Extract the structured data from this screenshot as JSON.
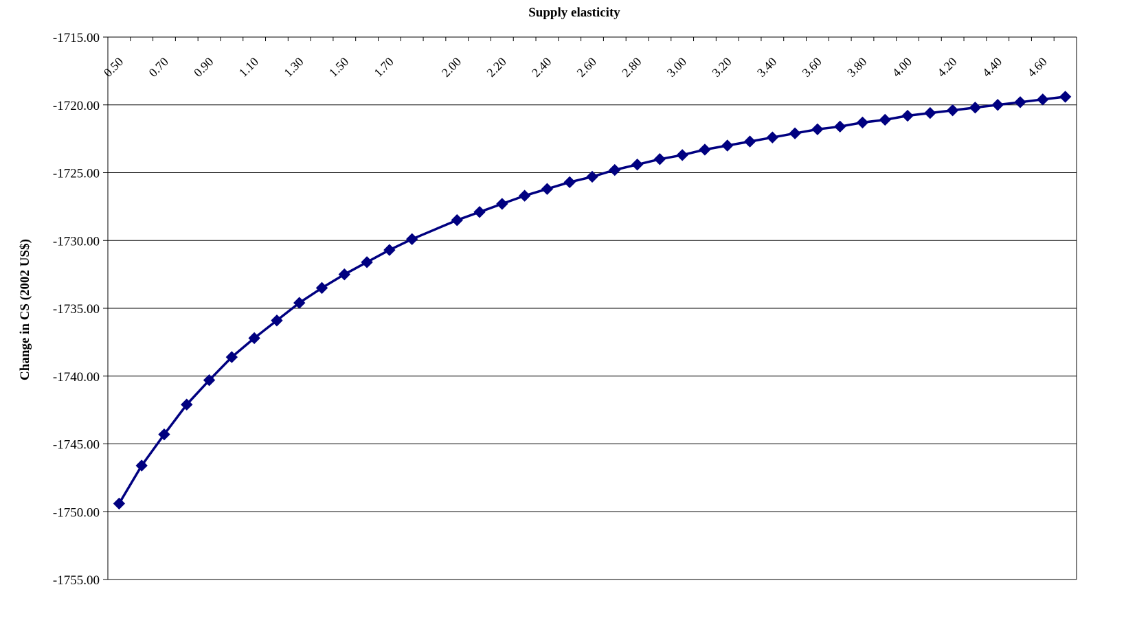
{
  "chart_data": {
    "type": "line",
    "title": "Supply elasticity",
    "xlabel": "",
    "ylabel": "Change in CS (2002 US$)",
    "ylim": [
      -1755,
      -1715
    ],
    "y_ticks": [
      "-1715.00",
      "-1720.00",
      "-1725.00",
      "-1730.00",
      "-1735.00",
      "-1740.00",
      "-1745.00",
      "-1750.00",
      "-1755.00"
    ],
    "x_tick_labels": [
      "0.50",
      "0.70",
      "0.90",
      "1.10",
      "1.30",
      "1.50",
      "1.70",
      "2.00",
      "2.20",
      "2.40",
      "2.60",
      "2.80",
      "3.00",
      "3.20",
      "3.40",
      "3.60",
      "3.80",
      "4.00",
      "4.20",
      "4.40",
      "4.60"
    ],
    "x_axis_position": "top",
    "grid": "horizontal",
    "legend": "none",
    "series": [
      {
        "color": "#000080",
        "marker": "diamond",
        "x": [
          0.5,
          0.6,
          0.7,
          0.8,
          0.9,
          1.0,
          1.1,
          1.2,
          1.3,
          1.4,
          1.5,
          1.6,
          1.7,
          1.8,
          2.0,
          2.1,
          2.2,
          2.3,
          2.4,
          2.5,
          2.6,
          2.7,
          2.8,
          2.9,
          3.0,
          3.1,
          3.2,
          3.3,
          3.4,
          3.5,
          3.6,
          3.7,
          3.8,
          3.9,
          4.0,
          4.1,
          4.2,
          4.3,
          4.4,
          4.5,
          4.6,
          4.7
        ],
        "values": [
          -1749.4,
          -1746.6,
          -1744.3,
          -1742.1,
          -1740.3,
          -1738.6,
          -1737.2,
          -1735.9,
          -1734.6,
          -1733.5,
          -1732.5,
          -1731.6,
          -1730.7,
          -1729.9,
          -1728.5,
          -1727.9,
          -1727.3,
          -1726.7,
          -1726.2,
          -1725.7,
          -1725.3,
          -1724.8,
          -1724.4,
          -1724.0,
          -1723.7,
          -1723.3,
          -1723.0,
          -1722.7,
          -1722.4,
          -1722.1,
          -1721.8,
          -1721.6,
          -1721.3,
          -1721.1,
          -1720.8,
          -1720.6,
          -1720.4,
          -1720.2,
          -1720.0,
          -1719.8,
          -1719.6,
          -1719.4
        ]
      }
    ]
  }
}
